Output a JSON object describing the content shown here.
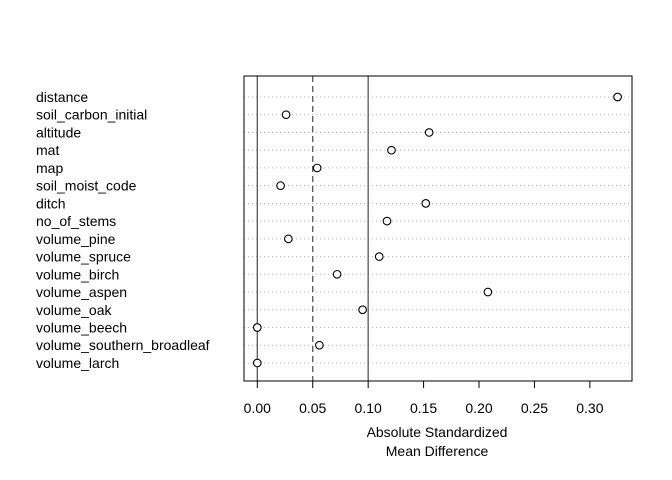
{
  "chart_data": {
    "type": "scatter",
    "title": "",
    "xlabel_lines": [
      "Absolute Standardized",
      "Mean Difference"
    ],
    "ylabel": "",
    "xlim": [
      -0.012,
      0.338
    ],
    "x_ticks": [
      0.0,
      0.05,
      0.1,
      0.15,
      0.2,
      0.25,
      0.3
    ],
    "x_tick_labels": [
      "0.00",
      "0.05",
      "0.10",
      "0.15",
      "0.20",
      "0.25",
      "0.30"
    ],
    "reference_lines": [
      {
        "x": 0.0,
        "style": "solid"
      },
      {
        "x": 0.05,
        "style": "dashed"
      },
      {
        "x": 0.1,
        "style": "solid"
      }
    ],
    "grid": "horizontal dotted",
    "categories": [
      "distance",
      "soil_carbon_initial",
      "altitude",
      "mat",
      "map",
      "soil_moist_code",
      "ditch",
      "no_of_stems",
      "volume_pine",
      "volume_spruce",
      "volume_birch",
      "volume_aspen",
      "volume_oak",
      "volume_beech",
      "volume_southern_broadleaf",
      "volume_larch"
    ],
    "values": [
      0.325,
      0.026,
      0.155,
      0.121,
      0.054,
      0.021,
      0.152,
      0.117,
      0.028,
      0.11,
      0.072,
      0.208,
      0.095,
      0.0,
      0.056,
      0.0
    ]
  }
}
